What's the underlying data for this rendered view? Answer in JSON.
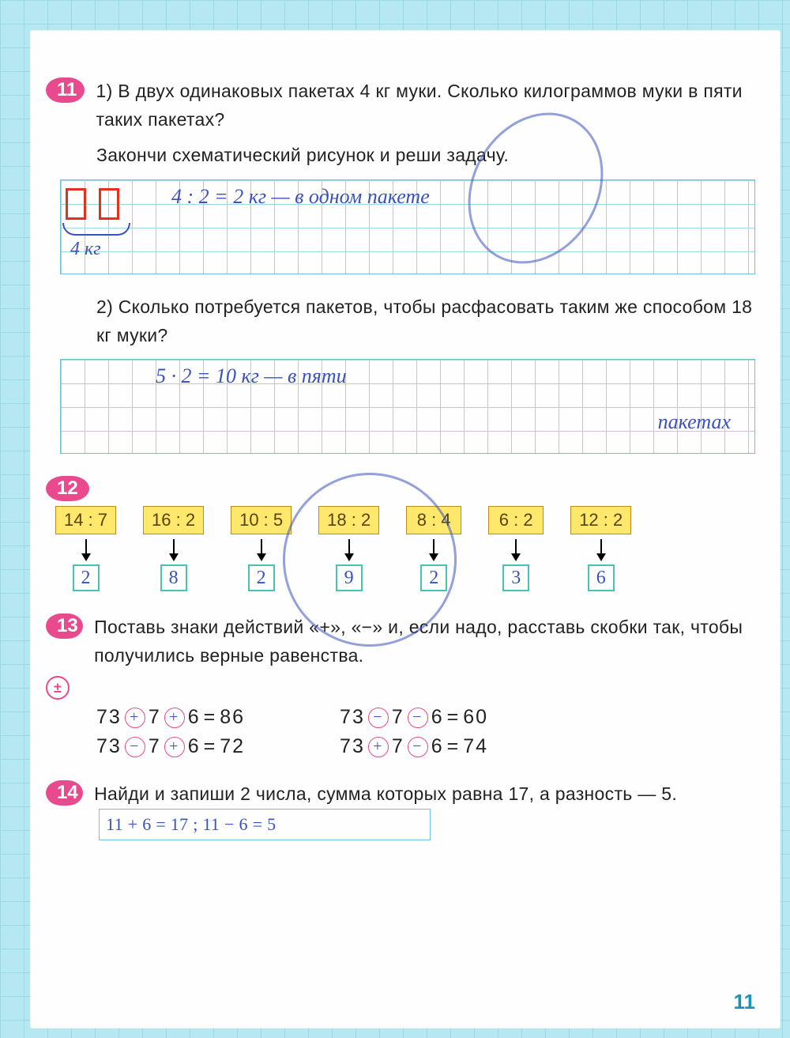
{
  "page_number": "11",
  "problems": {
    "p11": {
      "number": "11",
      "part1_label": "1)",
      "part1_text": "В двух одинаковых пакетах 4 кг муки. Сколько килограммов муки в пяти таких пакетах?",
      "part1_instruction": "Закончи схематический рисунок и реши задачу.",
      "redbox_count": 2,
      "brace_label": "4 кг",
      "handwritten1": "4 : 2 = 2 кг — в одном пакете",
      "part2_label": "2)",
      "part2_text": "Сколько потребуется пакетов, чтобы расфасовать таким же способом 18 кг муки?",
      "handwritten2a": "5 · 2 = 10 кг — в пяти",
      "handwritten2b": "пакетах"
    },
    "p12": {
      "number": "12",
      "items": [
        {
          "expr": "14 : 7",
          "ans": "2"
        },
        {
          "expr": "16 : 2",
          "ans": "8"
        },
        {
          "expr": "10 : 5",
          "ans": "2"
        },
        {
          "expr": "18 : 2",
          "ans": "9"
        },
        {
          "expr": "8 : 4",
          "ans": "2"
        },
        {
          "expr": "6 : 2",
          "ans": "3"
        },
        {
          "expr": "12 : 2",
          "ans": "6"
        }
      ],
      "colors": {
        "box_bg": "#ffe86b",
        "box_border": "#c08b1e",
        "ans_border": "#4ac3b7"
      }
    },
    "p13": {
      "number": "13",
      "text": "Поставь знаки действий «+», «−» и, если надо, расставь скобки так, чтобы получились верные равенства.",
      "icon": "±",
      "eq1": {
        "a": "73",
        "op1": "+",
        "b": "7",
        "op2": "+",
        "c": "6",
        "res": "86"
      },
      "eq2": {
        "a": "73",
        "op1": "−",
        "b": "7",
        "op2": "−",
        "c": "6",
        "res": "60"
      },
      "eq3": {
        "a": "73",
        "op1": "−",
        "b": "7",
        "op2": "+",
        "c": "6",
        "res": "72"
      },
      "eq4": {
        "a": "73",
        "op1": "+",
        "b": "7",
        "op2": "−",
        "c": "6",
        "res": "74"
      }
    },
    "p14": {
      "number": "14",
      "text": "Найди и запиши 2 числа, сумма которых равна 17, а разность — 5.",
      "answer": "11 + 6 = 17 ;  11 − 6 = 5"
    }
  },
  "colors": {
    "page_bg": "#b5e8f0",
    "grid_line": "#9dd8e2",
    "badge": "#e94a8e",
    "red": "#e53020",
    "ink": "#3a52c0",
    "pagelabel": "#1a93b4"
  }
}
